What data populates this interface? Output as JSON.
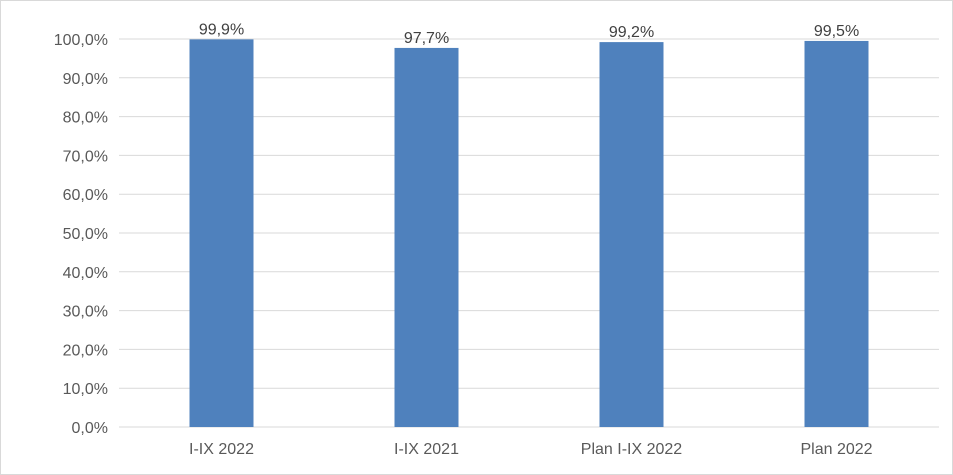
{
  "chart_data": {
    "type": "bar",
    "categories": [
      "I-IX 2022",
      "I-IX 2021",
      "Plan I-IX 2022",
      "Plan 2022"
    ],
    "values": [
      99.9,
      97.7,
      99.2,
      99.5
    ],
    "data_labels": [
      "99,9%",
      "97,7%",
      "99,2%",
      "99,5%"
    ],
    "ylim": [
      0,
      100
    ],
    "y_ticks": [
      0,
      10,
      20,
      30,
      40,
      50,
      60,
      70,
      80,
      90,
      100
    ],
    "y_tick_labels": [
      "0,0%",
      "10,0%",
      "20,0%",
      "30,0%",
      "40,0%",
      "50,0%",
      "60,0%",
      "70,0%",
      "80,0%",
      "90,0%",
      "100,0%"
    ],
    "grid": true,
    "legend": "none",
    "bar_color": "#4f81bd",
    "grid_color": "#d9d9d9"
  }
}
